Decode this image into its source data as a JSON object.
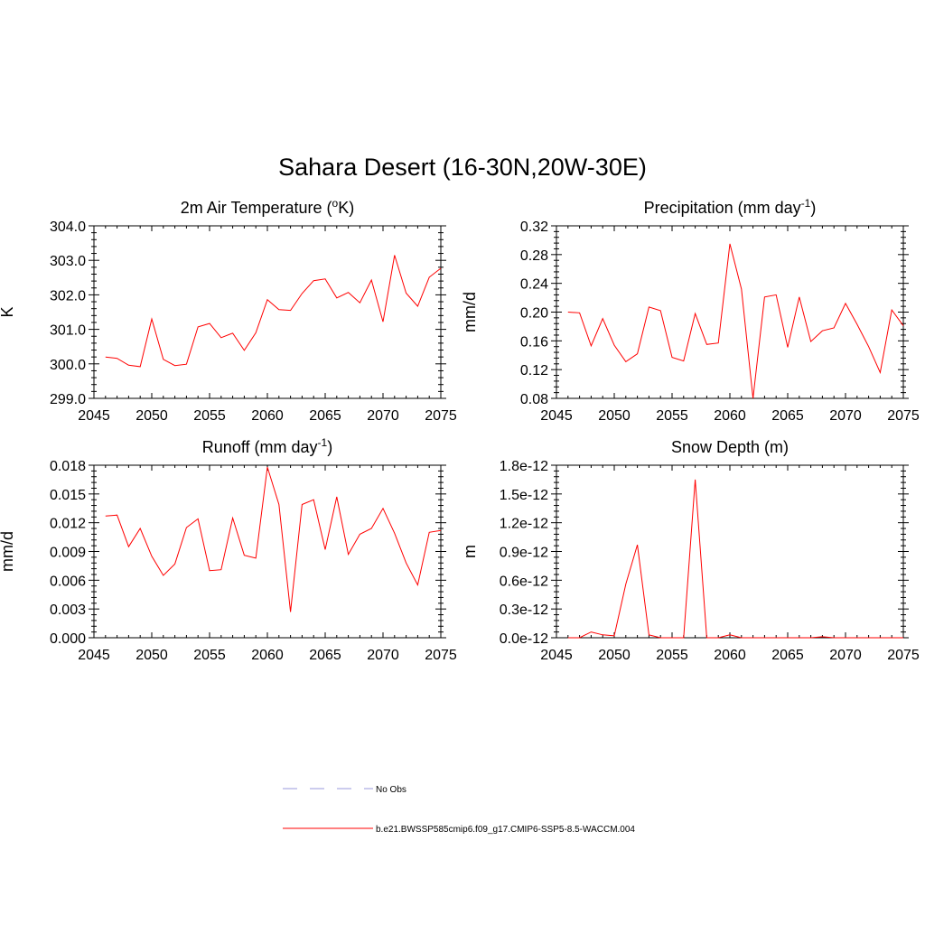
{
  "figure": {
    "title": "Sahara Desert (16-30N,20W-30E)"
  },
  "legend": {
    "entries": [
      {
        "label": "No Obs",
        "color": "#9999dd",
        "style": "dashed"
      },
      {
        "label": "b.e21.BWSSP585cmip6.f09_g17.CMIP6-SSP5-8.5-WACCM.004",
        "color": "#ff0000",
        "style": "solid"
      }
    ]
  },
  "chart_data": [
    {
      "type": "line",
      "title": "2m Air Temperature (",
      "title_super": "o",
      "title_tail": "K)",
      "ylabel": "K",
      "xlim": [
        2045,
        2075
      ],
      "ylim": [
        299.0,
        304.0
      ],
      "xticks": [
        2045,
        2050,
        2055,
        2060,
        2065,
        2070,
        2075
      ],
      "yticks": [
        "299.0",
        "300.0",
        "301.0",
        "302.0",
        "303.0",
        "304.0"
      ],
      "ytick_values": [
        299.0,
        300.0,
        301.0,
        302.0,
        303.0,
        304.0
      ],
      "series": [
        {
          "color": "#ff0000",
          "x": [
            2046,
            2047,
            2048,
            2049,
            2050,
            2051,
            2052,
            2053,
            2054,
            2055,
            2056,
            2057,
            2058,
            2059,
            2060,
            2061,
            2062,
            2063,
            2064,
            2065,
            2066,
            2067,
            2068,
            2069,
            2070,
            2071,
            2072,
            2073,
            2074,
            2075
          ],
          "values": [
            300.2,
            300.16,
            299.96,
            299.92,
            301.3,
            300.13,
            299.95,
            299.99,
            301.07,
            301.17,
            300.76,
            300.89,
            300.39,
            300.9,
            301.86,
            301.57,
            301.55,
            302.04,
            302.41,
            302.46,
            301.91,
            302.07,
            301.77,
            302.43,
            301.22,
            303.15,
            302.05,
            301.67,
            302.51,
            302.77
          ]
        }
      ]
    },
    {
      "type": "line",
      "title": "Precipitation (mm day",
      "title_super": "-1",
      "title_tail": ")",
      "ylabel": "mm/d",
      "xlim": [
        2045,
        2075
      ],
      "ylim": [
        0.08,
        0.32
      ],
      "xticks": [
        2045,
        2050,
        2055,
        2060,
        2065,
        2070,
        2075
      ],
      "yticks": [
        "0.08",
        "0.12",
        "0.16",
        "0.20",
        "0.24",
        "0.28",
        "0.32"
      ],
      "ytick_values": [
        0.08,
        0.12,
        0.16,
        0.2,
        0.24,
        0.28,
        0.32
      ],
      "series": [
        {
          "color": "#ff0000",
          "x": [
            2046,
            2047,
            2048,
            2049,
            2050,
            2051,
            2052,
            2053,
            2054,
            2055,
            2056,
            2057,
            2058,
            2059,
            2060,
            2061,
            2062,
            2063,
            2064,
            2065,
            2066,
            2067,
            2068,
            2069,
            2070,
            2071,
            2072,
            2073,
            2074,
            2075
          ],
          "values": [
            0.2,
            0.199,
            0.153,
            0.191,
            0.154,
            0.131,
            0.142,
            0.207,
            0.202,
            0.137,
            0.132,
            0.198,
            0.155,
            0.157,
            0.295,
            0.232,
            0.08,
            0.221,
            0.224,
            0.151,
            0.221,
            0.159,
            0.174,
            0.178,
            0.212,
            0.183,
            0.152,
            0.116,
            0.203,
            0.181
          ]
        }
      ]
    },
    {
      "type": "line",
      "title": "Runoff (mm day",
      "title_super": "-1",
      "title_tail": ")",
      "ylabel": "mm/d",
      "xlim": [
        2045,
        2075
      ],
      "ylim": [
        0.0,
        0.018
      ],
      "xticks": [
        2045,
        2050,
        2055,
        2060,
        2065,
        2070,
        2075
      ],
      "yticks": [
        "0.000",
        "0.003",
        "0.006",
        "0.009",
        "0.012",
        "0.015",
        "0.018"
      ],
      "ytick_values": [
        0.0,
        0.003,
        0.006,
        0.009,
        0.012,
        0.015,
        0.018
      ],
      "series": [
        {
          "color": "#ff0000",
          "x": [
            2046,
            2047,
            2048,
            2049,
            2050,
            2051,
            2052,
            2053,
            2054,
            2055,
            2056,
            2057,
            2058,
            2059,
            2060,
            2061,
            2062,
            2063,
            2064,
            2065,
            2066,
            2067,
            2068,
            2069,
            2070,
            2071,
            2072,
            2073,
            2074,
            2075
          ],
          "values": [
            0.0127,
            0.0128,
            0.0095,
            0.0114,
            0.0085,
            0.0065,
            0.0077,
            0.0115,
            0.0124,
            0.007,
            0.0071,
            0.0125,
            0.0086,
            0.0083,
            0.0178,
            0.0139,
            0.0027,
            0.0139,
            0.0144,
            0.0092,
            0.0147,
            0.0087,
            0.0108,
            0.0114,
            0.0135,
            0.0109,
            0.0078,
            0.0055,
            0.011,
            0.0112
          ]
        }
      ]
    },
    {
      "type": "line",
      "title": "Snow Depth (m)",
      "title_super": "",
      "title_tail": "",
      "ylabel": "m",
      "xlim": [
        2045,
        2075
      ],
      "ylim": [
        0.0,
        1.8e-12
      ],
      "xticks": [
        2045,
        2050,
        2055,
        2060,
        2065,
        2070,
        2075
      ],
      "yticks": [
        "0.0e-12",
        "0.3e-12",
        "0.6e-12",
        "0.9e-12",
        "1.2e-12",
        "1.5e-12",
        "1.8e-12"
      ],
      "ytick_values": [
        0.0,
        3e-13,
        6e-13,
        9e-13,
        1.2e-12,
        1.5e-12,
        1.8e-12
      ],
      "series": [
        {
          "color": "#ff0000",
          "x": [
            2046,
            2047,
            2048,
            2049,
            2050,
            2051,
            2052,
            2053,
            2054,
            2055,
            2056,
            2057,
            2058,
            2059,
            2060,
            2061,
            2062,
            2063,
            2064,
            2065,
            2066,
            2067,
            2068,
            2069,
            2070,
            2071,
            2072,
            2073,
            2074,
            2075
          ],
          "values": [
            0,
            0,
            6e-14,
            3e-14,
            2e-14,
            5.6e-13,
            9.7e-13,
            3e-14,
            0,
            0,
            0,
            1.65e-12,
            0,
            0,
            3e-14,
            0,
            0,
            0,
            0,
            0,
            0,
            0,
            1e-14,
            0,
            0,
            0,
            0,
            0,
            0,
            0
          ]
        }
      ]
    }
  ]
}
